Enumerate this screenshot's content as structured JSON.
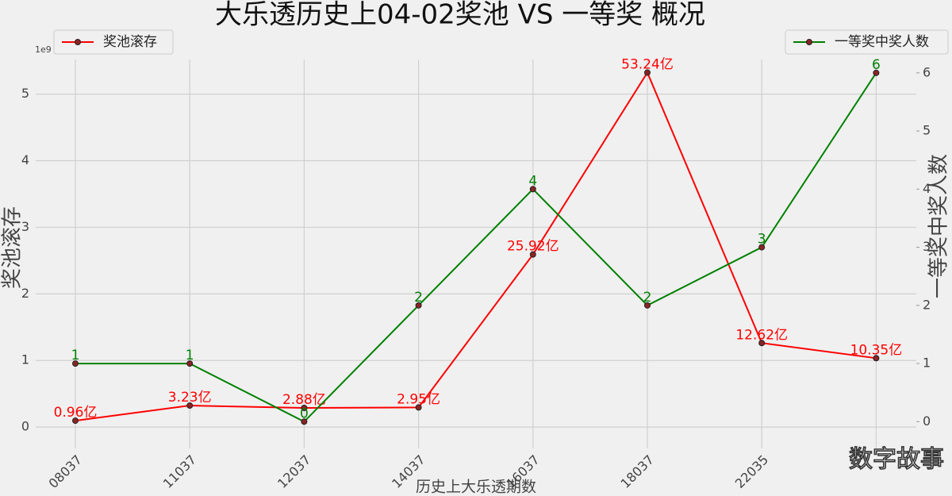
{
  "chart_data": {
    "type": "line",
    "title": "大乐透历史上04-02奖池 VS 一等奖 概况",
    "x_label": "历史上大乐透期数",
    "y_label": "奖池滚存",
    "y2_label": "一等奖中奖人数",
    "y_offset_label": "1e9",
    "watermark": "数字故事",
    "categories": [
      "08037",
      "11037",
      "12037",
      "14037",
      "16037",
      "18037",
      "22035",
      null
    ],
    "series": [
      {
        "name": "奖池滚存",
        "color": "#ff0000",
        "axis": "y",
        "values": [
          96000000,
          323000000,
          288000000,
          295000000,
          2592000000,
          5324000000,
          1262000000,
          1035000000
        ],
        "value_labels": [
          "0.96亿",
          "3.23亿",
          "2.88亿",
          "2.95亿",
          "25.92亿",
          "53.24亿",
          "12.62亿",
          "10.35亿"
        ]
      },
      {
        "name": "一等奖中奖人数",
        "color": "#008000",
        "axis": "y2",
        "values": [
          1,
          1,
          0,
          2,
          4,
          2,
          3,
          6
        ]
      }
    ],
    "ylim": [
      -320000000,
      5520000000
    ],
    "yticks": [
      {
        "value": 0,
        "label": "0"
      },
      {
        "value": 1000000000,
        "label": "1"
      },
      {
        "value": 2000000000,
        "label": "2"
      },
      {
        "value": 3000000000,
        "label": "3"
      },
      {
        "value": 4000000000,
        "label": "4"
      },
      {
        "value": 5000000000,
        "label": "5"
      }
    ],
    "y2lim": [
      -0.46,
      6.23
    ],
    "y2ticks": [
      0,
      1,
      2,
      3,
      4,
      5,
      6
    ],
    "grid": true
  }
}
